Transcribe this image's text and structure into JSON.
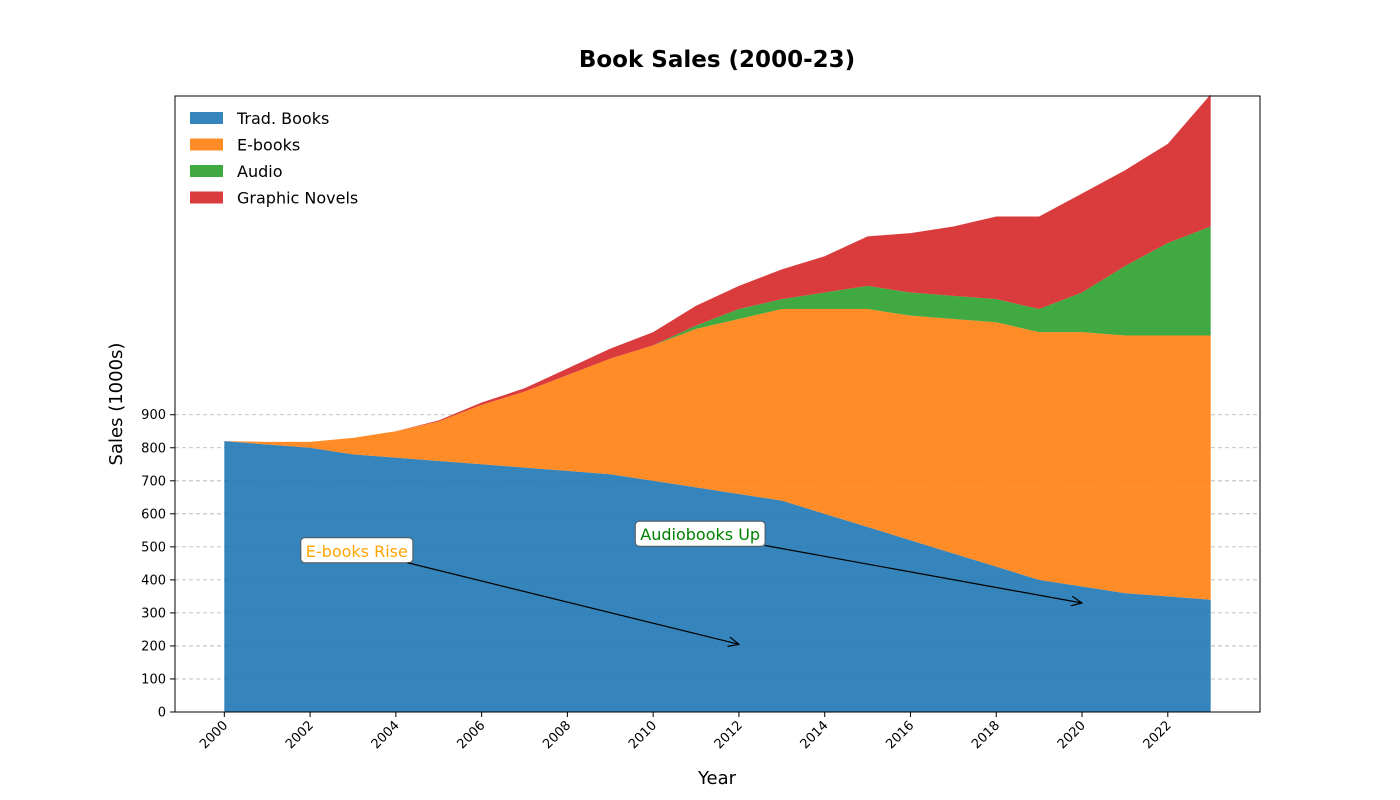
{
  "chart_data": {
    "type": "area",
    "stacked": true,
    "title": "Book Sales (2000-23)",
    "xlabel": "Year",
    "ylabel": "Sales (1000s)",
    "x": [
      2000,
      2001,
      2002,
      2003,
      2004,
      2005,
      2006,
      2007,
      2008,
      2009,
      2010,
      2011,
      2012,
      2013,
      2014,
      2015,
      2016,
      2017,
      2018,
      2019,
      2020,
      2021,
      2022,
      2023
    ],
    "xticks": [
      2000,
      2002,
      2004,
      2006,
      2008,
      2010,
      2012,
      2014,
      2016,
      2018,
      2020,
      2022
    ],
    "xtick_labels": [
      "2000",
      "2002",
      "2004",
      "2006",
      "2008",
      "2010",
      "2012",
      "2014",
      "2016",
      "2018",
      "2020",
      "2022"
    ],
    "xlim": [
      1998.85,
      2024.15
    ],
    "yticks": [
      0,
      100,
      200,
      300,
      400,
      500,
      600,
      700,
      800,
      900
    ],
    "ytick_labels": [
      "0",
      "100",
      "200",
      "300",
      "400",
      "500",
      "600",
      "700",
      "800",
      "900"
    ],
    "ylim": [
      0,
      1865
    ],
    "grid": "y-dashed",
    "legend": "top-left",
    "series": [
      {
        "name": "Trad. Books",
        "color": "#1f77b4",
        "values": [
          820,
          810,
          800,
          780,
          770,
          760,
          750,
          740,
          730,
          720,
          700,
          680,
          660,
          640,
          600,
          560,
          520,
          480,
          440,
          400,
          380,
          360,
          350,
          340
        ]
      },
      {
        "name": "E-books",
        "color": "#ff7f0e",
        "values": [
          0,
          8,
          18,
          50,
          80,
          120,
          180,
          230,
          290,
          350,
          410,
          480,
          530,
          580,
          620,
          660,
          680,
          710,
          740,
          750,
          770,
          780,
          790,
          800
        ]
      },
      {
        "name": "Audio",
        "color": "#2ca02c",
        "values": [
          0,
          0,
          0,
          0,
          0,
          0,
          0,
          0,
          0,
          0,
          0,
          10,
          30,
          30,
          50,
          70,
          70,
          70,
          70,
          70,
          120,
          210,
          280,
          330
        ]
      },
      {
        "name": "Graphic Novels",
        "color": "#d62728",
        "values": [
          0,
          0,
          0,
          0,
          0,
          3,
          7,
          10,
          20,
          30,
          40,
          60,
          70,
          90,
          110,
          150,
          180,
          210,
          250,
          280,
          300,
          290,
          300,
          400
        ]
      }
    ],
    "annotations": [
      {
        "text": "E-books Rise",
        "color": "#ffa500",
        "text_x": 2001.9,
        "text_y": 470,
        "point_x": 2012,
        "point_y": 205
      },
      {
        "text": "Audiobooks Up",
        "color": "#008000",
        "text_x": 2009.7,
        "text_y": 520,
        "point_x": 2020,
        "point_y": 330
      }
    ]
  }
}
